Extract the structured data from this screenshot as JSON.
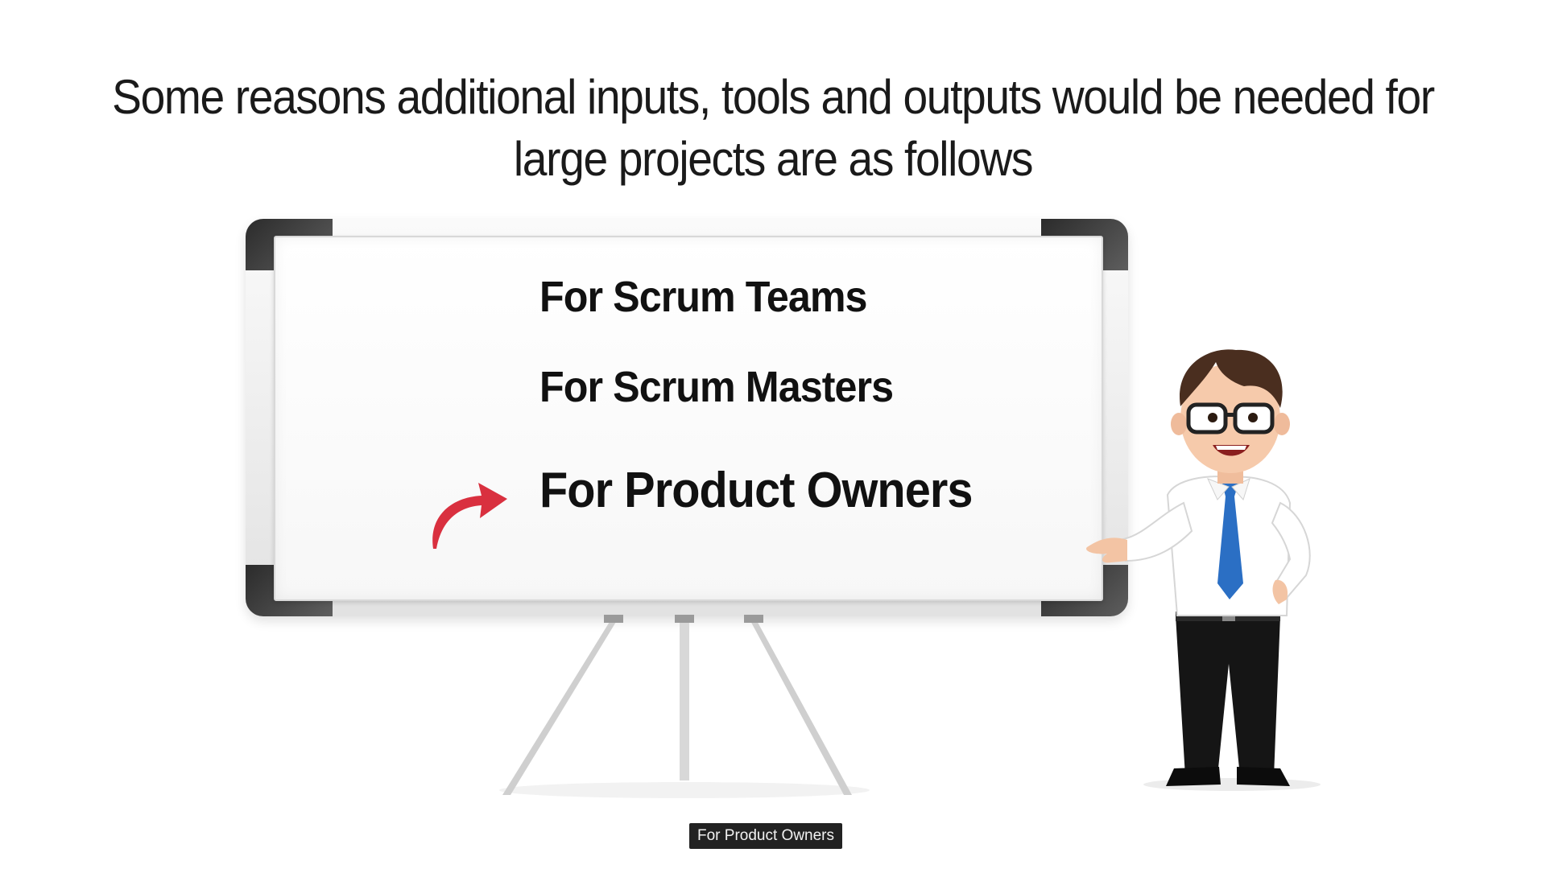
{
  "slide": {
    "title_line1": "Some reasons additional inputs, tools and outputs would be needed for",
    "title_line2": "large projects are as follows"
  },
  "whiteboard": {
    "items": [
      {
        "label": "For Scrum Teams",
        "highlighted": false
      },
      {
        "label": "For Scrum Masters",
        "highlighted": false
      },
      {
        "label": "For Product Owners",
        "highlighted": true
      }
    ],
    "pointer_icon": "curved-arrow-icon",
    "pointer_color": "#d9303f"
  },
  "character": {
    "icon": "presenter-businessman",
    "tie_color": "#2b6fc4"
  },
  "caption": {
    "text": "For Product Owners"
  }
}
